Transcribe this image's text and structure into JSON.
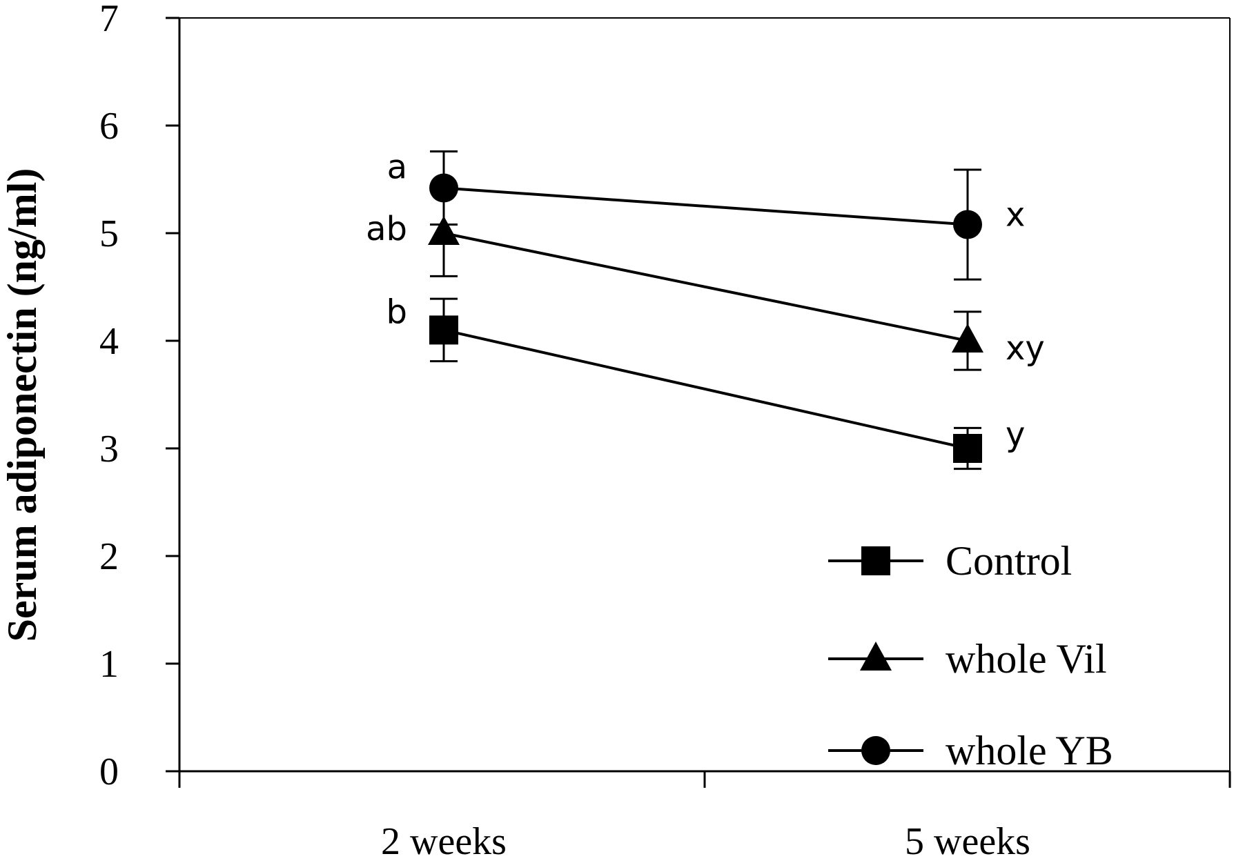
{
  "chart_data": {
    "type": "line",
    "ylabel": "Serum adiponectin (ng/ml)",
    "xlabel": "",
    "categories": [
      "2 weeks",
      "5 weeks"
    ],
    "ylim": [
      0,
      7
    ],
    "yticks": [
      0,
      1,
      2,
      3,
      4,
      5,
      6,
      7
    ],
    "grid": false,
    "legend_position": "bottom-right",
    "series": [
      {
        "name": "Control",
        "marker": "square",
        "values": [
          4.1,
          3.0
        ],
        "errors": [
          0.29,
          0.19
        ],
        "significance": [
          "b",
          "y"
        ]
      },
      {
        "name": "whole Vil",
        "marker": "triangle",
        "values": [
          5.0,
          4.0
        ],
        "errors": [
          0.4,
          0.27
        ],
        "significance": [
          "ab",
          "xy"
        ]
      },
      {
        "name": "whole YB",
        "marker": "circle",
        "values": [
          5.42,
          5.08
        ],
        "errors": [
          0.34,
          0.51
        ],
        "significance": [
          "a",
          "x"
        ]
      }
    ],
    "colors": {
      "line": "#000000",
      "marker": "#000000",
      "axis": "#000000"
    }
  }
}
